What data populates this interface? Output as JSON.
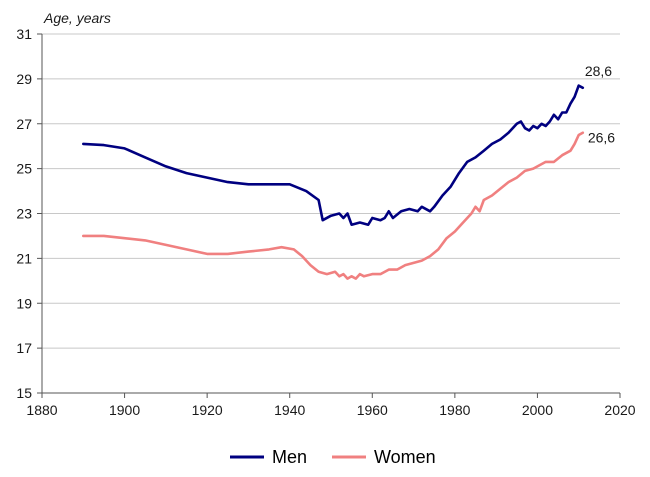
{
  "chart_data": {
    "type": "line",
    "ylabel": "Age, years",
    "xlim": [
      1880,
      2020
    ],
    "ylim": [
      15,
      31
    ],
    "x_ticks": [
      "1880",
      "1900",
      "1920",
      "1940",
      "1960",
      "1980",
      "2000",
      "2020"
    ],
    "y_ticks": [
      "15",
      "17",
      "19",
      "21",
      "23",
      "25",
      "27",
      "29",
      "31"
    ],
    "grid": "horizontal",
    "legend_position": "bottom",
    "series": [
      {
        "name": "Men",
        "color": "#000080",
        "end_label": "28,6",
        "points": [
          [
            1890,
            26.1
          ],
          [
            1895,
            26.05
          ],
          [
            1900,
            25.9
          ],
          [
            1905,
            25.5
          ],
          [
            1910,
            25.1
          ],
          [
            1915,
            24.8
          ],
          [
            1920,
            24.6
          ],
          [
            1925,
            24.4
          ],
          [
            1930,
            24.3
          ],
          [
            1935,
            24.3
          ],
          [
            1940,
            24.3
          ],
          [
            1944,
            24.0
          ],
          [
            1947,
            23.6
          ],
          [
            1948,
            22.7
          ],
          [
            1950,
            22.9
          ],
          [
            1952,
            23.0
          ],
          [
            1953,
            22.8
          ],
          [
            1954,
            23.0
          ],
          [
            1955,
            22.5
          ],
          [
            1957,
            22.6
          ],
          [
            1959,
            22.5
          ],
          [
            1960,
            22.8
          ],
          [
            1962,
            22.7
          ],
          [
            1963,
            22.8
          ],
          [
            1964,
            23.1
          ],
          [
            1965,
            22.8
          ],
          [
            1967,
            23.1
          ],
          [
            1969,
            23.2
          ],
          [
            1971,
            23.1
          ],
          [
            1972,
            23.3
          ],
          [
            1974,
            23.1
          ],
          [
            1975,
            23.3
          ],
          [
            1977,
            23.8
          ],
          [
            1979,
            24.2
          ],
          [
            1981,
            24.8
          ],
          [
            1983,
            25.3
          ],
          [
            1985,
            25.5
          ],
          [
            1987,
            25.8
          ],
          [
            1989,
            26.1
          ],
          [
            1991,
            26.3
          ],
          [
            1993,
            26.6
          ],
          [
            1995,
            27.0
          ],
          [
            1996,
            27.1
          ],
          [
            1997,
            26.8
          ],
          [
            1998,
            26.7
          ],
          [
            1999,
            26.9
          ],
          [
            2000,
            26.8
          ],
          [
            2001,
            27.0
          ],
          [
            2002,
            26.9
          ],
          [
            2003,
            27.1
          ],
          [
            2004,
            27.4
          ],
          [
            2005,
            27.2
          ],
          [
            2006,
            27.5
          ],
          [
            2007,
            27.5
          ],
          [
            2008,
            27.9
          ],
          [
            2009,
            28.2
          ],
          [
            2010,
            28.7
          ],
          [
            2011,
            28.6
          ]
        ]
      },
      {
        "name": "Women",
        "color": "#f08080",
        "end_label": "26,6",
        "points": [
          [
            1890,
            22.0
          ],
          [
            1895,
            22.0
          ],
          [
            1900,
            21.9
          ],
          [
            1905,
            21.8
          ],
          [
            1910,
            21.6
          ],
          [
            1915,
            21.4
          ],
          [
            1920,
            21.2
          ],
          [
            1925,
            21.2
          ],
          [
            1930,
            21.3
          ],
          [
            1935,
            21.4
          ],
          [
            1938,
            21.5
          ],
          [
            1941,
            21.4
          ],
          [
            1943,
            21.1
          ],
          [
            1945,
            20.7
          ],
          [
            1947,
            20.4
          ],
          [
            1949,
            20.3
          ],
          [
            1951,
            20.4
          ],
          [
            1952,
            20.2
          ],
          [
            1953,
            20.3
          ],
          [
            1954,
            20.1
          ],
          [
            1955,
            20.2
          ],
          [
            1956,
            20.1
          ],
          [
            1957,
            20.3
          ],
          [
            1958,
            20.2
          ],
          [
            1960,
            20.3
          ],
          [
            1962,
            20.3
          ],
          [
            1964,
            20.5
          ],
          [
            1966,
            20.5
          ],
          [
            1968,
            20.7
          ],
          [
            1970,
            20.8
          ],
          [
            1972,
            20.9
          ],
          [
            1974,
            21.1
          ],
          [
            1976,
            21.4
          ],
          [
            1978,
            21.9
          ],
          [
            1980,
            22.2
          ],
          [
            1982,
            22.6
          ],
          [
            1984,
            23.0
          ],
          [
            1985,
            23.3
          ],
          [
            1986,
            23.1
          ],
          [
            1987,
            23.6
          ],
          [
            1989,
            23.8
          ],
          [
            1991,
            24.1
          ],
          [
            1993,
            24.4
          ],
          [
            1995,
            24.6
          ],
          [
            1997,
            24.9
          ],
          [
            1999,
            25.0
          ],
          [
            2000,
            25.1
          ],
          [
            2002,
            25.3
          ],
          [
            2004,
            25.3
          ],
          [
            2006,
            25.6
          ],
          [
            2008,
            25.8
          ],
          [
            2009,
            26.1
          ],
          [
            2010,
            26.5
          ],
          [
            2011,
            26.6
          ]
        ]
      }
    ]
  }
}
